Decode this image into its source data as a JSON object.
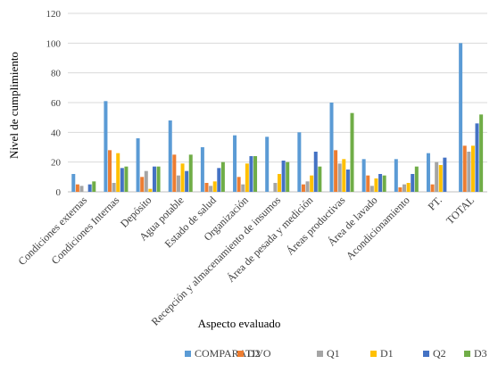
{
  "chart_data": {
    "type": "bar",
    "xlabel": "Aspecto evaluado",
    "ylabel": "Nivel de cumplimiento",
    "ylim": [
      0,
      120
    ],
    "yticks": [
      0,
      20,
      40,
      60,
      80,
      100,
      120
    ],
    "grid": true,
    "legend_position": "bottom",
    "categories": [
      "Condiciones externas",
      "Condiciones Internas",
      "Depósito",
      "Agua potable",
      "Estado de salud",
      "Organización",
      "Recepción y almacenamiento de insumos",
      "Área de pesada y medición",
      "Áreas productivas",
      "Área de lavado",
      "Acondicionamiento",
      "PT.",
      "TOTAL"
    ],
    "series": [
      {
        "name": "COMPARATIVO",
        "color": "#5b9bd5",
        "values": [
          12,
          61,
          36,
          48,
          30,
          38,
          37,
          40,
          60,
          22,
          22,
          26,
          100
        ]
      },
      {
        "name": "D2",
        "color": "#ed7d31",
        "values": [
          5,
          28,
          10,
          25,
          6,
          10,
          0,
          5,
          28,
          11,
          3,
          5,
          31
        ]
      },
      {
        "name": "Q1",
        "color": "#a5a5a5",
        "values": [
          4,
          6,
          14,
          11,
          4,
          5,
          6,
          7,
          19,
          4,
          5,
          20,
          27
        ]
      },
      {
        "name": "D1",
        "color": "#ffc000",
        "values": [
          0,
          26,
          2,
          19,
          7,
          19,
          12,
          11,
          22,
          9,
          6,
          18,
          31
        ]
      },
      {
        "name": "Q2",
        "color": "#4472c4",
        "values": [
          5,
          16,
          17,
          14,
          16,
          24,
          21,
          27,
          15,
          12,
          12,
          23,
          46
        ]
      },
      {
        "name": "D3",
        "color": "#70ad47",
        "values": [
          7,
          17,
          17,
          25,
          20,
          24,
          20,
          17,
          53,
          11,
          17,
          0,
          52
        ]
      }
    ]
  }
}
